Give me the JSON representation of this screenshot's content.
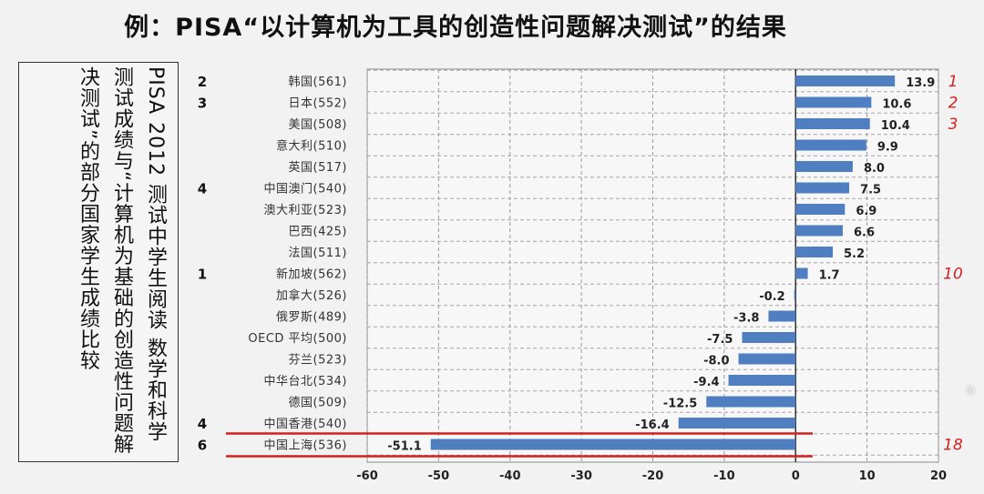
{
  "header": {
    "title": "例：PISA“以计算机为工具的创造性问题解决测试”的结果"
  },
  "sidebar": {
    "text": "PISA 2012 测试中学生阅读 数学和科学测试成绩与“计算机为基础的创造性问题解决测试”的部分国家学生成绩比较"
  },
  "chart_data": {
    "type": "bar",
    "orientation": "horizontal",
    "categories": [
      "韩国(561)",
      "日本(552)",
      "美国(508)",
      "意大利(510)",
      "英国(517)",
      "中国澳门(540)",
      "澳大利亚(523)",
      "巴西(425)",
      "法国(511)",
      "新加坡(562)",
      "加拿大(526)",
      "俄罗斯(489)",
      "OECD 平均(500)",
      "芬兰(523)",
      "中华台北(534)",
      "德国(509)",
      "中国香港(540)",
      "中国上海(536)"
    ],
    "values": [
      13.9,
      10.6,
      10.4,
      9.9,
      8.0,
      7.5,
      6.9,
      6.6,
      5.2,
      1.7,
      -0.2,
      -3.8,
      -7.5,
      -8.0,
      -9.4,
      -12.5,
      -16.4,
      -51.1
    ],
    "value_labels": [
      "13.9",
      "10.6",
      "10.4",
      "9.9",
      "8.0",
      "7.5",
      "6.9",
      "6.6",
      "5.2",
      "1.7",
      "-0.2",
      "-3.8",
      "-7.5",
      "-8.0",
      "-9.4",
      "-12.5",
      "-16.4",
      "-51.1"
    ],
    "left_annotations": [
      "2",
      "3",
      "",
      "",
      "",
      "4",
      "",
      "",
      "",
      "1",
      "",
      "",
      "",
      "",
      "",
      "",
      "4",
      "6"
    ],
    "right_annotations": [
      "1",
      "2",
      "3",
      "",
      "",
      "",
      "",
      "",
      "",
      "10",
      "",
      "",
      "",
      "",
      "",
      "",
      "",
      "18"
    ],
    "xlim": [
      -60,
      20
    ],
    "xticks": [
      "-60",
      "-50",
      "-40",
      "-30",
      "-20",
      "-10",
      "0",
      "10",
      "20"
    ],
    "grid": true,
    "bar_color": "#4f7fc0",
    "annotation_color": "#d42020",
    "highlight_color": "#d42020",
    "highlight_category": "中国上海(536)"
  }
}
